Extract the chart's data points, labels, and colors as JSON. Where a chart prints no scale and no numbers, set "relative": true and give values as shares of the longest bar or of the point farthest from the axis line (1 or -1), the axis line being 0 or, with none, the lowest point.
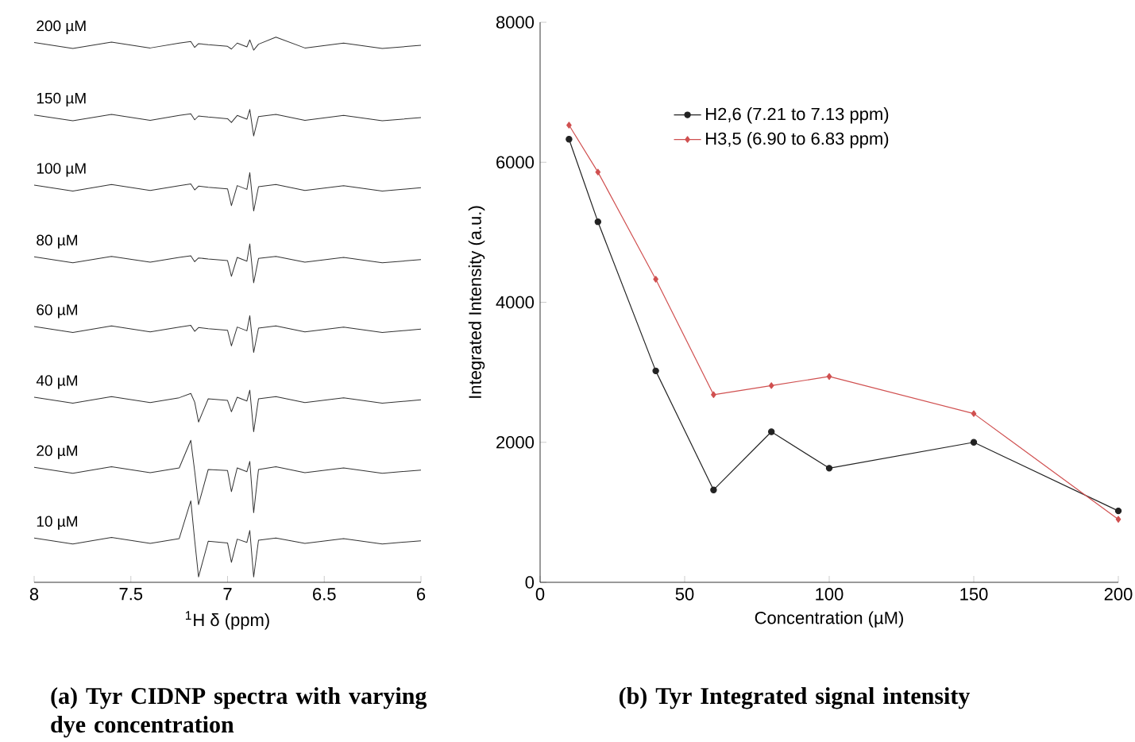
{
  "chart_data": [
    {
      "type": "line",
      "relative": true,
      "xlabel": "$^{1}$H δ (ppm)",
      "xlim": [
        8,
        6
      ],
      "xticks": [
        8,
        7.5,
        7,
        6.5,
        6
      ],
      "legend": false,
      "tick_labels": "x",
      "annotations": [
        "(a) Tyr CIDNP spectra with varying dye concentration"
      ],
      "series": [
        {
          "name": "200 µM",
          "color": "#333333",
          "x": [
            8.0,
            7.8,
            7.6,
            7.4,
            7.25,
            7.19,
            7.17,
            7.15,
            7.1,
            7.0,
            6.98,
            6.95,
            6.9,
            6.885,
            6.865,
            6.84,
            6.75,
            6.6,
            6.4,
            6.2,
            6.0
          ],
          "values": [
            0.99,
            0.979,
            0.991,
            0.98,
            0.989,
            0.992,
            0.981,
            0.988,
            0.986,
            0.983,
            0.978,
            0.989,
            0.982,
            0.995,
            0.976,
            0.987,
            1.0,
            0.98,
            0.989,
            0.979,
            0.985
          ]
        },
        {
          "name": "150 µM",
          "color": "#333333",
          "x": [
            8.0,
            7.8,
            7.6,
            7.4,
            7.25,
            7.19,
            7.17,
            7.15,
            7.1,
            7.0,
            6.98,
            6.95,
            6.9,
            6.885,
            6.865,
            6.84,
            6.75,
            6.6,
            6.4,
            6.2,
            6.0
          ],
          "values": [
            0.856,
            0.845,
            0.857,
            0.846,
            0.855,
            0.858,
            0.847,
            0.854,
            0.852,
            0.849,
            0.842,
            0.855,
            0.848,
            0.866,
            0.817,
            0.853,
            0.857,
            0.846,
            0.855,
            0.845,
            0.851
          ]
        },
        {
          "name": "100 µM",
          "color": "#333333",
          "x": [
            8.0,
            7.8,
            7.6,
            7.4,
            7.25,
            7.19,
            7.17,
            7.15,
            7.1,
            7.0,
            6.98,
            6.95,
            6.9,
            6.885,
            6.865,
            6.84,
            6.75,
            6.6,
            6.4,
            6.2,
            6.0
          ],
          "values": [
            0.726,
            0.715,
            0.727,
            0.716,
            0.725,
            0.728,
            0.717,
            0.724,
            0.722,
            0.719,
            0.688,
            0.725,
            0.718,
            0.749,
            0.678,
            0.723,
            0.727,
            0.716,
            0.725,
            0.715,
            0.721
          ]
        },
        {
          "name": "80 µM",
          "color": "#333333",
          "x": [
            8.0,
            7.8,
            7.6,
            7.4,
            7.25,
            7.19,
            7.17,
            7.15,
            7.1,
            7.0,
            6.98,
            6.95,
            6.9,
            6.885,
            6.865,
            6.84,
            6.75,
            6.6,
            6.4,
            6.2,
            6.0
          ],
          "values": [
            0.593,
            0.582,
            0.594,
            0.583,
            0.592,
            0.595,
            0.584,
            0.591,
            0.589,
            0.586,
            0.557,
            0.592,
            0.585,
            0.617,
            0.545,
            0.59,
            0.594,
            0.583,
            0.592,
            0.582,
            0.588
          ]
        },
        {
          "name": "60 µM",
          "color": "#333333",
          "x": [
            8.0,
            7.8,
            7.6,
            7.4,
            7.25,
            7.19,
            7.17,
            7.15,
            7.1,
            7.0,
            6.98,
            6.95,
            6.9,
            6.885,
            6.865,
            6.84,
            6.75,
            6.6,
            6.4,
            6.2,
            6.0
          ],
          "values": [
            0.464,
            0.453,
            0.465,
            0.454,
            0.463,
            0.466,
            0.455,
            0.462,
            0.46,
            0.457,
            0.428,
            0.463,
            0.456,
            0.484,
            0.416,
            0.461,
            0.465,
            0.454,
            0.463,
            0.453,
            0.459
          ]
        },
        {
          "name": "40 µM",
          "color": "#333333",
          "x": [
            8.0,
            7.8,
            7.6,
            7.4,
            7.25,
            7.19,
            7.17,
            7.15,
            7.1,
            7.0,
            6.98,
            6.95,
            6.9,
            6.885,
            6.865,
            6.84,
            6.75,
            6.6,
            6.4,
            6.2,
            6.0
          ],
          "values": [
            0.333,
            0.322,
            0.334,
            0.323,
            0.332,
            0.34,
            0.324,
            0.287,
            0.33,
            0.327,
            0.306,
            0.333,
            0.326,
            0.346,
            0.269,
            0.33,
            0.334,
            0.323,
            0.332,
            0.322,
            0.328
          ]
        },
        {
          "name": "20 µM",
          "color": "#333333",
          "x": [
            8.0,
            7.8,
            7.6,
            7.4,
            7.25,
            7.19,
            7.17,
            7.15,
            7.1,
            7.0,
            6.98,
            6.95,
            6.9,
            6.885,
            6.865,
            6.84,
            6.75,
            6.6,
            6.4,
            6.2,
            6.0
          ],
          "values": [
            0.203,
            0.192,
            0.204,
            0.193,
            0.202,
            0.253,
            0.196,
            0.134,
            0.199,
            0.197,
            0.158,
            0.202,
            0.195,
            0.214,
            0.119,
            0.199,
            0.204,
            0.193,
            0.202,
            0.192,
            0.198
          ]
        },
        {
          "name": "10 µM",
          "color": "#333333",
          "x": [
            8.0,
            7.8,
            7.6,
            7.4,
            7.25,
            7.19,
            7.17,
            7.15,
            7.1,
            7.0,
            6.98,
            6.95,
            6.9,
            6.885,
            6.865,
            6.84,
            6.75,
            6.6,
            6.4,
            6.2,
            6.0
          ],
          "values": [
            0.072,
            0.061,
            0.073,
            0.062,
            0.071,
            0.141,
            0.068,
            0.0,
            0.066,
            0.063,
            0.027,
            0.07,
            0.064,
            0.086,
            0.0,
            0.068,
            0.072,
            0.062,
            0.071,
            0.061,
            0.067
          ]
        }
      ]
    },
    {
      "type": "line",
      "xlabel": "Concentration (µM)",
      "ylabel": "Integrated Intensity (a.u.)",
      "x": [
        10,
        20,
        40,
        60,
        80,
        100,
        150,
        200
      ],
      "xlim": [
        0,
        200
      ],
      "ylim": [
        0,
        8000
      ],
      "xticks": [
        0,
        50,
        100,
        150,
        200
      ],
      "yticks": [
        0,
        2000,
        4000,
        6000,
        8000
      ],
      "legend": "top",
      "annotations": [
        "(b) Tyr Integrated signal intensity"
      ],
      "series": [
        {
          "name": "H2,6 (7.21 to 7.13 ppm)",
          "color": "#222222",
          "marker": "circle",
          "values": [
            6330,
            5150,
            3020,
            1320,
            2150,
            1630,
            2000,
            1020
          ]
        },
        {
          "name": "H3,5 (6.90 to 6.83 ppm)",
          "color": "#d05050",
          "marker": "diamond",
          "values": [
            6530,
            5860,
            4330,
            2680,
            2810,
            2940,
            2410,
            900
          ]
        }
      ]
    }
  ]
}
